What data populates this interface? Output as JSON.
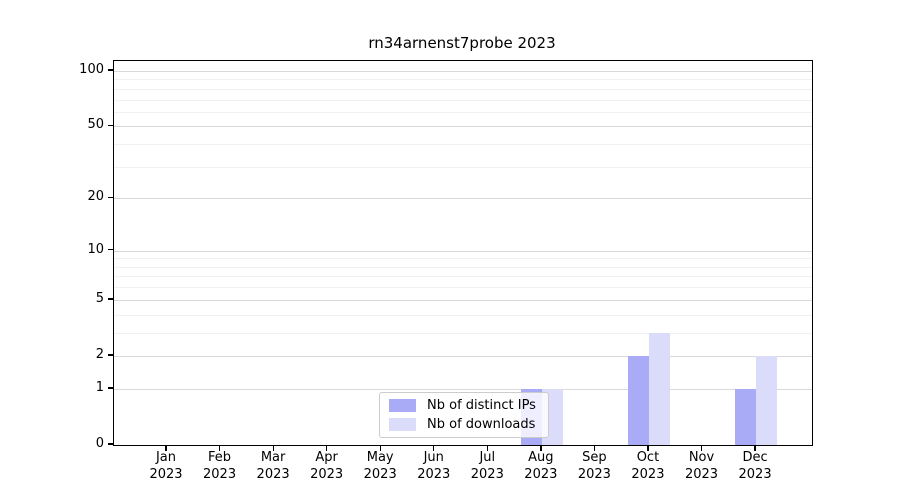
{
  "figure": {
    "background": "#ffffff"
  },
  "chart_data": {
    "type": "bar",
    "title": "rn34arnenst7probe 2023",
    "categories": [
      "Jan",
      "Feb",
      "Mar",
      "Apr",
      "May",
      "Jun",
      "Jul",
      "Aug",
      "Sep",
      "Oct",
      "Nov",
      "Dec"
    ],
    "category_year": "2023",
    "series": [
      {
        "name": "Nb of distinct IPs",
        "color": "#aaabf7",
        "values": [
          0,
          0,
          0,
          0,
          0,
          0,
          0,
          1,
          0,
          2,
          0,
          1
        ]
      },
      {
        "name": "Nb of downloads",
        "color": "#dadcfa",
        "values": [
          0,
          0,
          0,
          0,
          0,
          0,
          0,
          1,
          0,
          3,
          0,
          2
        ]
      }
    ],
    "yscale": "log1p",
    "ylim": [
      0,
      113.3
    ],
    "yticks_major": [
      0,
      1,
      2,
      5,
      10,
      20,
      50,
      100
    ],
    "yticks_minor": [
      3,
      4,
      6,
      7,
      8,
      9,
      30,
      40,
      60,
      70,
      80,
      90
    ],
    "grid": true,
    "legend_position": "lower center"
  },
  "colors": {
    "axis_line": "#000000",
    "grid_major": "#d9d9d9",
    "grid_minor": "#f0f0f0",
    "legend_border": "#cccccc",
    "legend_background": "rgba(255,255,255,0.8)"
  }
}
